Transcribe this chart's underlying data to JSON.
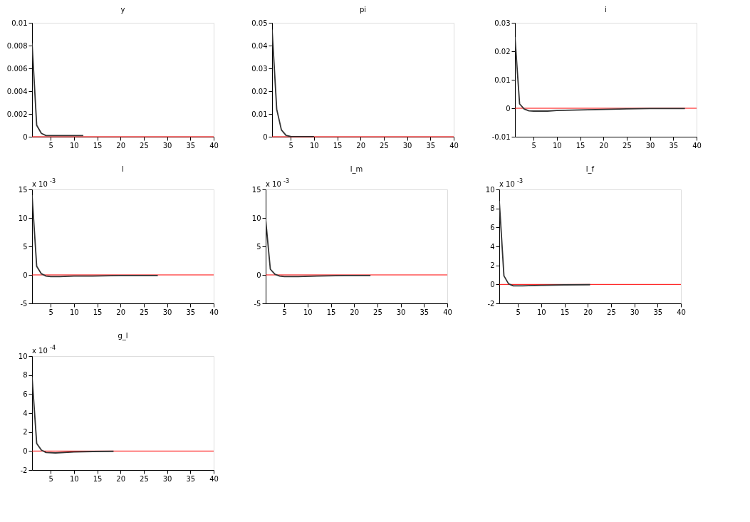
{
  "chart_data": [
    {
      "type": "line",
      "title": "y",
      "xlim": [
        1,
        40
      ],
      "xticks": [
        5,
        10,
        15,
        20,
        25,
        30,
        35,
        40
      ],
      "ylim": [
        0,
        0.01
      ],
      "yticks": [
        0,
        0.002,
        0.004,
        0.006,
        0.008,
        0.01
      ],
      "grid": false,
      "line_style": "solid",
      "marker": "none",
      "series": [
        {
          "color": "#333333",
          "x": [
            1,
            2,
            3,
            4,
            5,
            6,
            8,
            10,
            12
          ],
          "values": [
            0.0082,
            0.001,
            0.0003,
            0.0001,
            0.0001,
            0.0001,
            0.0001,
            0.0001,
            0.0001
          ]
        }
      ],
      "ref_lines": [
        {
          "axis": "y",
          "value": 0,
          "color": "#ff0000"
        }
      ]
    },
    {
      "type": "line",
      "title": "pi",
      "xlim": [
        1,
        40
      ],
      "xticks": [
        5,
        10,
        15,
        20,
        25,
        30,
        35,
        40
      ],
      "ylim": [
        0,
        0.05
      ],
      "yticks": [
        0,
        0.01,
        0.02,
        0.03,
        0.04,
        0.05
      ],
      "grid": false,
      "line_style": "solid",
      "marker": "none",
      "series": [
        {
          "color": "#333333",
          "x": [
            1,
            2,
            3,
            4,
            5,
            6,
            10
          ],
          "values": [
            0.047,
            0.012,
            0.003,
            0.0006,
            0.0001,
            0,
            0
          ]
        }
      ],
      "ref_lines": [
        {
          "axis": "y",
          "value": 0,
          "color": "#ff0000"
        }
      ]
    },
    {
      "type": "line",
      "title": "i",
      "xlim": [
        1,
        40
      ],
      "xticks": [
        5,
        10,
        15,
        20,
        25,
        30,
        35,
        40
      ],
      "ylim": [
        -0.01,
        0.03
      ],
      "yticks": [
        -0.01,
        0,
        0.01,
        0.02,
        0.03
      ],
      "grid": false,
      "line_style": "solid",
      "marker": "none",
      "series": [
        {
          "color": "#333333",
          "x": [
            1,
            2,
            3,
            4,
            5,
            8,
            10,
            15,
            20,
            25,
            30,
            37.5
          ],
          "values": [
            0.025,
            0.0015,
            -0.0003,
            -0.0009,
            -0.001,
            -0.001,
            -0.0008,
            -0.0006,
            -0.0004,
            -0.0002,
            -0.0001,
            -0.0001
          ]
        }
      ],
      "ref_lines": [
        {
          "axis": "y",
          "value": 0,
          "color": "#ff0000"
        }
      ]
    },
    {
      "type": "line",
      "title": "l",
      "xlim": [
        1,
        40
      ],
      "xticks": [
        5,
        10,
        15,
        20,
        25,
        30,
        35,
        40
      ],
      "ylim": [
        -5,
        15
      ],
      "yticks": [
        -5,
        0,
        5,
        10,
        15
      ],
      "grid": false,
      "line_style": "solid",
      "marker": "none",
      "annotations": [
        "x 10$^{-3}$"
      ],
      "series": [
        {
          "color": "#333333",
          "x": [
            1,
            2,
            3,
            4,
            5,
            7,
            10,
            14,
            20,
            28
          ],
          "values": [
            14,
            1.5,
            0.2,
            -0.2,
            -0.3,
            -0.3,
            -0.2,
            -0.2,
            -0.1,
            -0.1
          ]
        }
      ],
      "ref_lines": [
        {
          "axis": "y",
          "value": 0,
          "color": "#ff0000"
        }
      ]
    },
    {
      "type": "line",
      "title": "l_m",
      "xlim": [
        1,
        40
      ],
      "xticks": [
        5,
        10,
        15,
        20,
        25,
        30,
        35,
        40
      ],
      "ylim": [
        -5,
        15
      ],
      "yticks": [
        -5,
        0,
        5,
        10,
        15
      ],
      "grid": false,
      "line_style": "solid",
      "marker": "none",
      "annotations": [
        "x 10$^{-3}$"
      ],
      "series": [
        {
          "color": "#333333",
          "x": [
            1,
            2,
            3,
            4,
            5,
            8,
            12,
            18,
            23.5
          ],
          "values": [
            9.7,
            1,
            0.1,
            -0.2,
            -0.3,
            -0.3,
            -0.2,
            -0.1,
            -0.1
          ]
        }
      ],
      "ref_lines": [
        {
          "axis": "y",
          "value": 0,
          "color": "#ff0000"
        }
      ]
    },
    {
      "type": "line",
      "title": "l_f",
      "xlim": [
        1,
        40
      ],
      "xticks": [
        5,
        10,
        15,
        20,
        25,
        30,
        35,
        40
      ],
      "ylim": [
        -2,
        10
      ],
      "yticks": [
        -2,
        0,
        2,
        4,
        6,
        8,
        10
      ],
      "grid": false,
      "line_style": "solid",
      "marker": "none",
      "annotations": [
        "x 10$^{-3}$"
      ],
      "series": [
        {
          "color": "#333333",
          "x": [
            1,
            2,
            3,
            4,
            6,
            10,
            15,
            20.5
          ],
          "values": [
            8.8,
            0.9,
            0.05,
            -0.15,
            -0.15,
            -0.1,
            -0.05,
            -0.03
          ]
        }
      ],
      "ref_lines": [
        {
          "axis": "y",
          "value": 0,
          "color": "#ff0000"
        }
      ]
    },
    {
      "type": "line",
      "title": "g_l",
      "xlim": [
        1,
        40
      ],
      "xticks": [
        5,
        10,
        15,
        20,
        25,
        30,
        35,
        40
      ],
      "ylim": [
        -2,
        10
      ],
      "yticks": [
        -2,
        0,
        2,
        4,
        6,
        8,
        10
      ],
      "grid": false,
      "line_style": "solid",
      "marker": "none",
      "annotations": [
        "x 10$^{-4}$"
      ],
      "series": [
        {
          "color": "#333333",
          "x": [
            1,
            2,
            3,
            4,
            6,
            10,
            14,
            18.5
          ],
          "values": [
            7.8,
            0.8,
            0.1,
            -0.15,
            -0.2,
            -0.1,
            -0.05,
            -0.03
          ]
        }
      ],
      "ref_lines": [
        {
          "axis": "y",
          "value": 0,
          "color": "#ff0000"
        }
      ]
    }
  ]
}
